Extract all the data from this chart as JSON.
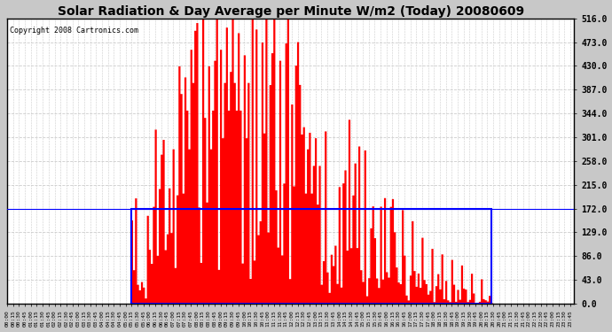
{
  "title": "Solar Radiation & Day Average per Minute W/m2 (Today) 20080609",
  "copyright": "Copyright 2008 Cartronics.com",
  "ylabel_right": [
    "0.0",
    "43.0",
    "86.0",
    "129.0",
    "172.0",
    "215.0",
    "258.0",
    "301.0",
    "344.0",
    "387.0",
    "430.0",
    "473.0",
    "516.0"
  ],
  "ymax": 516.0,
  "ymin": 0.0,
  "bg_color": "#c8c8c8",
  "plot_bg_color": "#ffffff",
  "bar_color": "#ff0000",
  "avg_line_color": "#0000ff",
  "grid_color": "#bbbbbb",
  "title_color": "#000000",
  "copyright_color": "#000000",
  "avg_box_color": "#0000ff",
  "avg_line_value": 172.0,
  "sunrise_idx": 63,
  "sunset_idx": 245,
  "n_points": 288,
  "tick_every": 3,
  "title_fontsize": 10,
  "copyright_fontsize": 6,
  "ytick_fontsize": 7,
  "xtick_fontsize": 4.5
}
